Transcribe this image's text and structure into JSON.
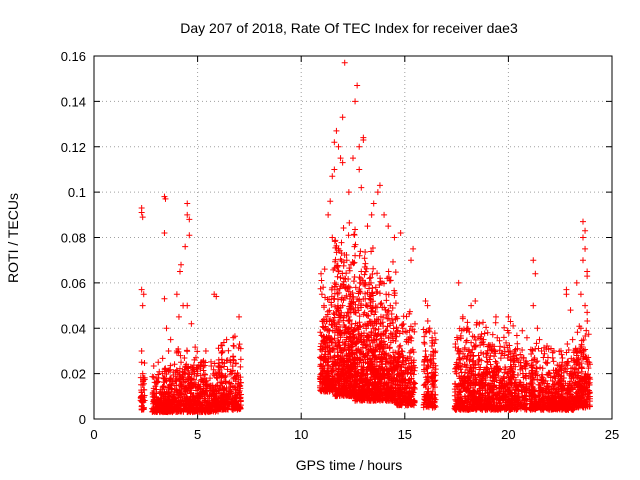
{
  "chart_data": {
    "type": "scatter",
    "title": "Day 207 of 2018, Rate Of TEC Index for receiver dae3",
    "xlabel": "GPS time / hours",
    "ylabel": "ROTI / TECUs",
    "xlim": [
      0,
      25
    ],
    "ylim": [
      0,
      0.16
    ],
    "x_ticks": [
      "0",
      "5",
      "10",
      "15",
      "20",
      "25"
    ],
    "y_ticks": [
      "0",
      "0.02",
      "0.04",
      "0.06",
      "0.08",
      "0.1",
      "0.12",
      "0.14",
      "0.16"
    ],
    "grid": true,
    "marker": "+",
    "color": "#ff0000",
    "series": [
      {
        "points": [
          [
            2.3,
            0.093
          ],
          [
            2.3,
            0.091
          ],
          [
            2.35,
            0.089
          ],
          [
            2.3,
            0.057
          ],
          [
            2.4,
            0.055
          ],
          [
            2.35,
            0.05
          ],
          [
            2.3,
            0.03
          ],
          [
            2.3,
            0.025
          ],
          [
            2.35,
            0.015
          ],
          [
            2.3,
            0.01
          ],
          [
            2.4,
            0.005
          ],
          [
            2.35,
            0.02
          ],
          [
            3.4,
            0.098
          ],
          [
            3.45,
            0.097
          ],
          [
            3.4,
            0.082
          ],
          [
            3.4,
            0.053
          ],
          [
            3.5,
            0.04
          ],
          [
            3.6,
            0.03
          ],
          [
            3.3,
            0.02
          ],
          [
            3.2,
            0.012
          ],
          [
            3.0,
            0.018
          ],
          [
            2.9,
            0.008
          ],
          [
            3.1,
            0.025
          ],
          [
            3.7,
            0.035
          ],
          [
            4.5,
            0.095
          ],
          [
            4.5,
            0.09
          ],
          [
            4.6,
            0.088
          ],
          [
            4.6,
            0.081
          ],
          [
            4.4,
            0.076
          ],
          [
            4.2,
            0.068
          ],
          [
            4.15,
            0.065
          ],
          [
            4.0,
            0.055
          ],
          [
            4.3,
            0.05
          ],
          [
            4.5,
            0.05
          ],
          [
            4.1,
            0.045
          ],
          [
            4.7,
            0.042
          ],
          [
            4.0,
            0.03
          ],
          [
            4.2,
            0.025
          ],
          [
            4.4,
            0.02
          ],
          [
            4.6,
            0.015
          ],
          [
            4.8,
            0.01
          ],
          [
            5.0,
            0.02
          ],
          [
            5.2,
            0.025
          ],
          [
            5.4,
            0.03
          ],
          [
            5.6,
            0.018
          ],
          [
            5.8,
            0.012
          ],
          [
            6.0,
            0.02
          ],
          [
            6.2,
            0.03
          ],
          [
            5.8,
            0.055
          ],
          [
            5.9,
            0.054
          ],
          [
            6.4,
            0.035
          ],
          [
            6.6,
            0.025
          ],
          [
            6.8,
            0.02
          ],
          [
            7.0,
            0.045
          ],
          [
            7.0,
            0.015
          ],
          [
            6.5,
            0.01
          ],
          [
            5.5,
            0.008
          ],
          [
            5.0,
            0.005
          ],
          [
            4.0,
            0.006
          ],
          [
            3.5,
            0.005
          ],
          [
            11.0,
            0.055
          ],
          [
            11.1,
            0.05
          ],
          [
            11.2,
            0.045
          ],
          [
            11.3,
            0.09
          ],
          [
            11.4,
            0.096
          ],
          [
            11.5,
            0.107
          ],
          [
            11.6,
            0.11
          ],
          [
            11.6,
            0.122
          ],
          [
            11.7,
            0.127
          ],
          [
            11.8,
            0.12
          ],
          [
            11.9,
            0.115
          ],
          [
            12.0,
            0.113
          ],
          [
            12.0,
            0.133
          ],
          [
            12.1,
            0.157
          ],
          [
            12.3,
            0.1
          ],
          [
            12.5,
            0.115
          ],
          [
            12.6,
            0.14
          ],
          [
            12.7,
            0.147
          ],
          [
            12.8,
            0.12
          ],
          [
            12.8,
            0.11
          ],
          [
            13.0,
            0.124
          ],
          [
            13.0,
            0.123
          ],
          [
            12.9,
            0.102
          ],
          [
            13.2,
            0.085
          ],
          [
            13.4,
            0.09
          ],
          [
            13.5,
            0.095
          ],
          [
            13.7,
            0.1
          ],
          [
            13.8,
            0.103
          ],
          [
            14.0,
            0.09
          ],
          [
            14.2,
            0.085
          ],
          [
            14.5,
            0.08
          ],
          [
            14.8,
            0.082
          ],
          [
            15.4,
            0.075
          ],
          [
            15.3,
            0.07
          ],
          [
            11.5,
            0.08
          ],
          [
            11.8,
            0.075
          ],
          [
            12.2,
            0.07
          ],
          [
            12.4,
            0.068
          ],
          [
            12.6,
            0.072
          ],
          [
            12.9,
            0.065
          ],
          [
            13.1,
            0.06
          ],
          [
            13.3,
            0.062
          ],
          [
            13.6,
            0.058
          ],
          [
            13.9,
            0.06
          ],
          [
            14.1,
            0.055
          ],
          [
            14.3,
            0.05
          ],
          [
            14.6,
            0.045
          ],
          [
            14.9,
            0.04
          ],
          [
            15.1,
            0.035
          ],
          [
            15.3,
            0.03
          ],
          [
            11.0,
            0.03
          ],
          [
            11.2,
            0.025
          ],
          [
            11.4,
            0.035
          ],
          [
            11.7,
            0.04
          ],
          [
            12.0,
            0.05
          ],
          [
            12.3,
            0.045
          ],
          [
            12.7,
            0.04
          ],
          [
            13.0,
            0.035
          ],
          [
            13.4,
            0.03
          ],
          [
            13.8,
            0.025
          ],
          [
            14.2,
            0.02
          ],
          [
            14.6,
            0.018
          ],
          [
            15.0,
            0.015
          ],
          [
            15.3,
            0.01
          ],
          [
            11.5,
            0.015
          ],
          [
            12.5,
            0.012
          ],
          [
            13.5,
            0.01
          ],
          [
            14.5,
            0.01
          ],
          [
            16.0,
            0.052
          ],
          [
            16.1,
            0.05
          ],
          [
            16.2,
            0.04
          ],
          [
            16.0,
            0.03
          ],
          [
            16.3,
            0.025
          ],
          [
            16.1,
            0.02
          ],
          [
            16.4,
            0.015
          ],
          [
            16.0,
            0.01
          ],
          [
            16.2,
            0.007
          ],
          [
            17.6,
            0.06
          ],
          [
            17.8,
            0.045
          ],
          [
            18.0,
            0.04
          ],
          [
            18.2,
            0.05
          ],
          [
            18.4,
            0.052
          ],
          [
            18.6,
            0.042
          ],
          [
            18.8,
            0.035
          ],
          [
            19.0,
            0.038
          ],
          [
            19.2,
            0.03
          ],
          [
            19.4,
            0.045
          ],
          [
            19.6,
            0.032
          ],
          [
            19.8,
            0.028
          ],
          [
            20.0,
            0.045
          ],
          [
            20.1,
            0.043
          ],
          [
            20.3,
            0.03
          ],
          [
            20.5,
            0.025
          ],
          [
            20.7,
            0.02
          ],
          [
            17.5,
            0.02
          ],
          [
            17.8,
            0.015
          ],
          [
            18.1,
            0.01
          ],
          [
            18.5,
            0.012
          ],
          [
            18.9,
            0.02
          ],
          [
            19.3,
            0.015
          ],
          [
            19.7,
            0.01
          ],
          [
            20.1,
            0.018
          ],
          [
            20.5,
            0.01
          ],
          [
            20.8,
            0.013
          ],
          [
            17.7,
            0.03
          ],
          [
            18.3,
            0.028
          ],
          [
            19.0,
            0.025
          ],
          [
            21.2,
            0.07
          ],
          [
            21.3,
            0.064
          ],
          [
            21.2,
            0.05
          ],
          [
            21.4,
            0.04
          ],
          [
            21.5,
            0.035
          ],
          [
            21.6,
            0.03
          ],
          [
            21.8,
            0.025
          ],
          [
            22.0,
            0.02
          ],
          [
            22.2,
            0.03
          ],
          [
            22.4,
            0.015
          ],
          [
            22.6,
            0.025
          ],
          [
            22.8,
            0.057
          ],
          [
            22.8,
            0.055
          ],
          [
            23.0,
            0.048
          ],
          [
            23.1,
            0.035
          ],
          [
            23.3,
            0.06
          ],
          [
            23.5,
            0.055
          ],
          [
            23.6,
            0.087
          ],
          [
            23.7,
            0.083
          ],
          [
            23.6,
            0.08
          ],
          [
            23.7,
            0.075
          ],
          [
            23.6,
            0.07
          ],
          [
            23.8,
            0.065
          ],
          [
            23.8,
            0.063
          ],
          [
            23.7,
            0.05
          ],
          [
            23.8,
            0.047
          ],
          [
            23.5,
            0.04
          ],
          [
            23.3,
            0.03
          ],
          [
            23.0,
            0.02
          ],
          [
            22.5,
            0.01
          ],
          [
            22.0,
            0.012
          ],
          [
            21.5,
            0.015
          ],
          [
            21.0,
            0.02
          ],
          [
            21.2,
            0.01
          ],
          [
            23.9,
            0.015
          ],
          [
            23.9,
            0.025
          ]
        ],
        "bands": [
          {
            "x": [
              2.25,
              2.45
            ],
            "y": [
              0.004,
              0.03
            ],
            "n": 40
          },
          {
            "x": [
              2.8,
              3.3
            ],
            "y": [
              0.003,
              0.024
            ],
            "n": 120
          },
          {
            "x": [
              3.3,
              4.0
            ],
            "y": [
              0.003,
              0.03
            ],
            "n": 200
          },
          {
            "x": [
              4.0,
              5.0
            ],
            "y": [
              0.003,
              0.036
            ],
            "n": 260
          },
          {
            "x": [
              5.0,
              6.0
            ],
            "y": [
              0.003,
              0.03
            ],
            "n": 240
          },
          {
            "x": [
              6.0,
              7.1
            ],
            "y": [
              0.004,
              0.04
            ],
            "n": 260
          },
          {
            "x": [
              10.9,
              11.6
            ],
            "y": [
              0.012,
              0.07
            ],
            "n": 260
          },
          {
            "x": [
              11.6,
              12.6
            ],
            "y": [
              0.01,
              0.09
            ],
            "n": 520
          },
          {
            "x": [
              12.6,
              13.6
            ],
            "y": [
              0.008,
              0.085
            ],
            "n": 480
          },
          {
            "x": [
              13.6,
              14.6
            ],
            "y": [
              0.008,
              0.07
            ],
            "n": 380
          },
          {
            "x": [
              14.6,
              15.5
            ],
            "y": [
              0.006,
              0.05
            ],
            "n": 260
          },
          {
            "x": [
              15.9,
              16.5
            ],
            "y": [
              0.005,
              0.05
            ],
            "n": 140
          },
          {
            "x": [
              17.4,
              18.5
            ],
            "y": [
              0.004,
              0.05
            ],
            "n": 320
          },
          {
            "x": [
              18.5,
              19.6
            ],
            "y": [
              0.004,
              0.045
            ],
            "n": 320
          },
          {
            "x": [
              19.6,
              20.9
            ],
            "y": [
              0.004,
              0.042
            ],
            "n": 320
          },
          {
            "x": [
              21.0,
              22.2
            ],
            "y": [
              0.004,
              0.038
            ],
            "n": 300
          },
          {
            "x": [
              22.2,
              23.2
            ],
            "y": [
              0.004,
              0.035
            ],
            "n": 280
          },
          {
            "x": [
              23.2,
              23.95
            ],
            "y": [
              0.005,
              0.045
            ],
            "n": 220
          }
        ]
      }
    ]
  }
}
